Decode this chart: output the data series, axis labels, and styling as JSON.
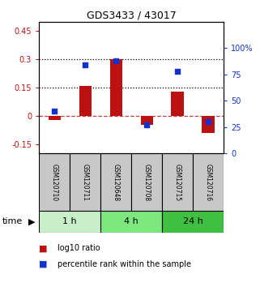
{
  "title": "GDS3433 / 43017",
  "samples": [
    "GSM120710",
    "GSM120711",
    "GSM120648",
    "GSM120708",
    "GSM120715",
    "GSM120716"
  ],
  "log10_ratio": [
    -0.02,
    0.16,
    0.3,
    -0.05,
    0.13,
    -0.09
  ],
  "percentile_rank": [
    40,
    84,
    88,
    27,
    78,
    30
  ],
  "time_groups": [
    {
      "label": "1 h",
      "start": 0,
      "end": 1,
      "color": "#c8f0c8"
    },
    {
      "label": "4 h",
      "start": 2,
      "end": 3,
      "color": "#7de87d"
    },
    {
      "label": "24 h",
      "start": 4,
      "end": 5,
      "color": "#40c040"
    }
  ],
  "left_ylim": [
    -0.2,
    0.5
  ],
  "right_ylim": [
    0,
    125
  ],
  "left_yticks": [
    -0.15,
    0.0,
    0.15,
    0.3,
    0.45
  ],
  "right_yticks": [
    0,
    25,
    50,
    75,
    100
  ],
  "hlines": [
    0.15,
    0.3
  ],
  "bar_color": "#bb1111",
  "dot_color": "#1133cc",
  "bar_width": 0.4,
  "sample_cell_color": "#c8c8c8",
  "title_fontsize": 9,
  "tick_fontsize": 7,
  "label_fontsize": 7,
  "time_fontsize": 8
}
